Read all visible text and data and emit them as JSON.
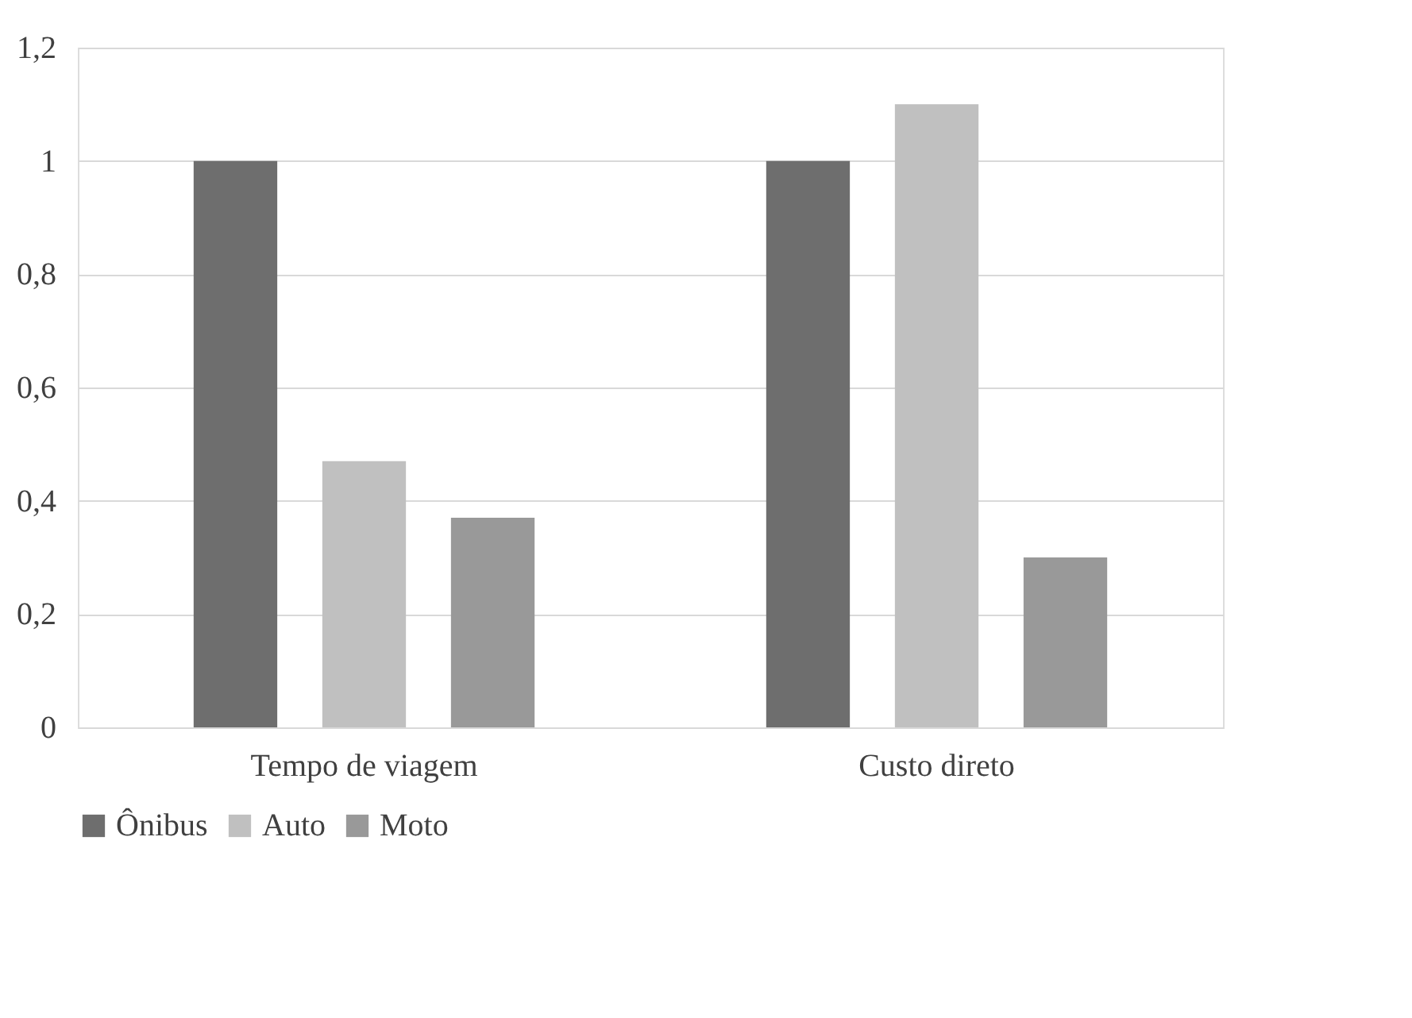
{
  "chart_data": {
    "type": "bar",
    "categories": [
      "Tempo de viagem",
      "Custo direto"
    ],
    "series": [
      {
        "name": "Ônibus",
        "color": "#6e6e6e",
        "values": [
          1,
          1
        ]
      },
      {
        "name": "Auto",
        "color": "#c0c0c0",
        "values": [
          0.47,
          1.1
        ]
      },
      {
        "name": "Moto",
        "color": "#999999",
        "values": [
          0.37,
          0.3
        ]
      }
    ],
    "ylim": [
      0,
      1.2
    ],
    "yticks": [
      {
        "value": 0,
        "label": "0"
      },
      {
        "value": 0.2,
        "label": "0,2"
      },
      {
        "value": 0.4,
        "label": "0,4"
      },
      {
        "value": 0.6,
        "label": "0,6"
      },
      {
        "value": 0.8,
        "label": "0,8"
      },
      {
        "value": 1,
        "label": "1"
      },
      {
        "value": 1.2,
        "label": "1,2"
      }
    ],
    "grid": "y",
    "legend": "bottom"
  }
}
